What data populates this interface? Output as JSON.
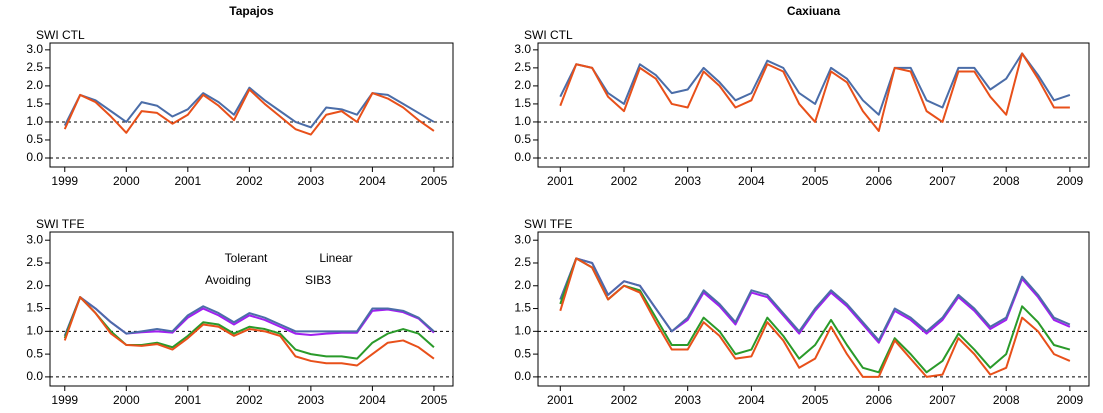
{
  "chart_data": [
    {
      "type": "line",
      "title": "Tapajos",
      "ylabel": "SWI CTL",
      "x": [
        1999,
        1999.25,
        1999.5,
        1999.75,
        2000,
        2000.25,
        2000.5,
        2000.75,
        2001,
        2001.25,
        2001.5,
        2001.75,
        2002,
        2002.25,
        2002.5,
        2002.75,
        2003,
        2003.25,
        2003.5,
        2003.75,
        2004,
        2004.25,
        2004.5,
        2004.75,
        2005
      ],
      "xlim": [
        1998.76,
        2005.31
      ],
      "xticks": [
        1999,
        2000,
        2001,
        2002,
        2003,
        2004,
        2005
      ],
      "ylim": [
        -0.25,
        3.19
      ],
      "yticks": [
        {
          "value": 0,
          "label": "0.0"
        },
        {
          "value": 0.5,
          "label": "0.5"
        },
        {
          "value": 1,
          "label": "1.0"
        },
        {
          "value": 1.5,
          "label": "1.5"
        },
        {
          "value": 2,
          "label": "2.0"
        },
        {
          "value": 2.5,
          "label": "2.5"
        },
        {
          "value": 3,
          "label": "3.0"
        }
      ],
      "hlines": [
        0,
        1
      ],
      "series": [
        {
          "color": "#4b6da8",
          "values": [
            0.9,
            1.75,
            1.6,
            1.3,
            1.0,
            1.55,
            1.45,
            1.15,
            1.35,
            1.8,
            1.55,
            1.2,
            1.95,
            1.6,
            1.3,
            1.0,
            0.85,
            1.4,
            1.35,
            1.2,
            1.8,
            1.75,
            1.5,
            1.25,
            1.0
          ]
        },
        {
          "color": "#e8501a",
          "values": [
            0.8,
            1.75,
            1.55,
            1.15,
            0.7,
            1.3,
            1.25,
            0.95,
            1.2,
            1.75,
            1.45,
            1.05,
            1.9,
            1.5,
            1.15,
            0.8,
            0.65,
            1.2,
            1.3,
            1.0,
            1.8,
            1.65,
            1.4,
            1.05,
            0.75
          ]
        }
      ]
    },
    {
      "type": "line",
      "title": "Caxiuana",
      "ylabel": "SWI CTL",
      "x": [
        2001,
        2001.25,
        2001.5,
        2001.75,
        2002,
        2002.25,
        2002.5,
        2002.75,
        2003,
        2003.25,
        2003.5,
        2003.75,
        2004,
        2004.25,
        2004.5,
        2004.75,
        2005,
        2005.25,
        2005.5,
        2005.75,
        2006,
        2006.25,
        2006.5,
        2006.75,
        2007,
        2007.25,
        2007.5,
        2007.75,
        2008,
        2008.25,
        2008.5,
        2008.75,
        2009
      ],
      "xlim": [
        2000.65,
        2009.3
      ],
      "xticks": [
        2001,
        2002,
        2003,
        2004,
        2005,
        2006,
        2007,
        2008,
        2009
      ],
      "ylim": [
        -0.25,
        3.19
      ],
      "yticks": [
        {
          "value": 0,
          "label": "0.0"
        },
        {
          "value": 0.5,
          "label": "0.5"
        },
        {
          "value": 1,
          "label": "1.0"
        },
        {
          "value": 1.5,
          "label": "1.5"
        },
        {
          "value": 2,
          "label": "2.0"
        },
        {
          "value": 2.5,
          "label": "2.5"
        },
        {
          "value": 3,
          "label": "3.0"
        }
      ],
      "hlines": [
        0,
        1
      ],
      "series": [
        {
          "color": "#4b6da8",
          "values": [
            1.7,
            2.6,
            2.5,
            1.8,
            1.5,
            2.6,
            2.3,
            1.8,
            1.9,
            2.5,
            2.1,
            1.6,
            1.8,
            2.7,
            2.5,
            1.8,
            1.5,
            2.5,
            2.2,
            1.6,
            1.2,
            2.5,
            2.5,
            1.6,
            1.4,
            2.5,
            2.5,
            1.9,
            2.2,
            2.9,
            2.3,
            1.6,
            1.75
          ]
        },
        {
          "color": "#e8501a",
          "values": [
            1.45,
            2.6,
            2.5,
            1.7,
            1.3,
            2.5,
            2.2,
            1.5,
            1.4,
            2.4,
            2.0,
            1.4,
            1.6,
            2.6,
            2.4,
            1.5,
            1.0,
            2.4,
            2.1,
            1.3,
            0.75,
            2.5,
            2.4,
            1.3,
            1.0,
            2.4,
            2.4,
            1.7,
            1.2,
            2.9,
            2.2,
            1.4,
            1.4
          ]
        }
      ]
    },
    {
      "type": "line",
      "ylabel": "SWI TFE",
      "legend": true,
      "x": [
        1999,
        1999.25,
        1999.5,
        1999.75,
        2000,
        2000.25,
        2000.5,
        2000.75,
        2001,
        2001.25,
        2001.5,
        2001.75,
        2002,
        2002.25,
        2002.5,
        2002.75,
        2003,
        2003.25,
        2003.5,
        2003.75,
        2004,
        2004.25,
        2004.5,
        2004.75,
        2005
      ],
      "xlim": [
        1998.76,
        2005.31
      ],
      "xticks": [
        1999,
        2000,
        2001,
        2002,
        2003,
        2004,
        2005
      ],
      "ylim": [
        -0.2,
        3.18
      ],
      "yticks": [
        {
          "value": 0,
          "label": "0.0"
        },
        {
          "value": 0.5,
          "label": "0.5"
        },
        {
          "value": 1,
          "label": "1.0"
        },
        {
          "value": 1.5,
          "label": "1.5"
        },
        {
          "value": 2,
          "label": "2.0"
        },
        {
          "value": 2.5,
          "label": "2.5"
        },
        {
          "value": 3,
          "label": "3.0"
        }
      ],
      "hlines": [
        0,
        1
      ],
      "series": [
        {
          "name": "Tolerant",
          "color": "#a020f0",
          "values": [
            0.9,
            1.75,
            1.5,
            1.2,
            0.95,
            0.98,
            1.0,
            0.97,
            1.3,
            1.5,
            1.35,
            1.15,
            1.35,
            1.25,
            1.1,
            0.95,
            0.92,
            0.95,
            0.97,
            0.97,
            1.45,
            1.48,
            1.42,
            1.28,
            0.97
          ]
        },
        {
          "name": "Avoiding",
          "color": "#4b6da8",
          "values": [
            0.9,
            1.75,
            1.5,
            1.2,
            0.95,
            1.0,
            1.05,
            1.0,
            1.35,
            1.55,
            1.4,
            1.2,
            1.4,
            1.3,
            1.15,
            1.0,
            1.0,
            1.0,
            1.0,
            1.0,
            1.5,
            1.5,
            1.45,
            1.3,
            1.0
          ]
        },
        {
          "name": "Linear",
          "color": "#2a9a2a",
          "values": [
            0.85,
            1.75,
            1.4,
            1.0,
            0.7,
            0.7,
            0.75,
            0.65,
            0.9,
            1.2,
            1.15,
            0.95,
            1.1,
            1.05,
            0.95,
            0.6,
            0.5,
            0.45,
            0.45,
            0.4,
            0.75,
            0.95,
            1.05,
            0.95,
            0.65
          ]
        },
        {
          "name": "SIB3",
          "color": "#e8501a",
          "values": [
            0.8,
            1.75,
            1.4,
            0.95,
            0.7,
            0.68,
            0.72,
            0.6,
            0.85,
            1.15,
            1.1,
            0.9,
            1.05,
            1.0,
            0.9,
            0.45,
            0.35,
            0.3,
            0.3,
            0.25,
            0.5,
            0.75,
            0.8,
            0.65,
            0.4
          ]
        }
      ]
    },
    {
      "type": "line",
      "ylabel": "SWI TFE",
      "x": [
        2001,
        2001.25,
        2001.5,
        2001.75,
        2002,
        2002.25,
        2002.5,
        2002.75,
        2003,
        2003.25,
        2003.5,
        2003.75,
        2004,
        2004.25,
        2004.5,
        2004.75,
        2005,
        2005.25,
        2005.5,
        2005.75,
        2006,
        2006.25,
        2006.5,
        2006.75,
        2007,
        2007.25,
        2007.5,
        2007.75,
        2008,
        2008.25,
        2008.5,
        2008.75,
        2009
      ],
      "xlim": [
        2000.65,
        2009.3
      ],
      "xticks": [
        2001,
        2002,
        2003,
        2004,
        2005,
        2006,
        2007,
        2008,
        2009
      ],
      "ylim": [
        -0.2,
        3.18
      ],
      "yticks": [
        {
          "value": 0,
          "label": "0.0"
        },
        {
          "value": 0.5,
          "label": "0.5"
        },
        {
          "value": 1,
          "label": "1.0"
        },
        {
          "value": 1.5,
          "label": "1.5"
        },
        {
          "value": 2,
          "label": "2.0"
        },
        {
          "value": 2.5,
          "label": "2.5"
        },
        {
          "value": 3,
          "label": "3.0"
        }
      ],
      "hlines": [
        0,
        1
      ],
      "series": [
        {
          "color": "#a020f0",
          "values": [
            1.7,
            2.6,
            2.5,
            1.8,
            2.1,
            2.0,
            1.5,
            1.0,
            1.25,
            1.85,
            1.55,
            1.15,
            1.85,
            1.75,
            1.35,
            0.95,
            1.45,
            1.85,
            1.55,
            1.15,
            0.75,
            1.45,
            1.25,
            0.95,
            1.25,
            1.75,
            1.45,
            1.05,
            1.25,
            2.15,
            1.75,
            1.25,
            1.1
          ]
        },
        {
          "color": "#4b6da8",
          "values": [
            1.7,
            2.6,
            2.5,
            1.8,
            2.1,
            2.0,
            1.5,
            1.0,
            1.3,
            1.9,
            1.6,
            1.2,
            1.9,
            1.8,
            1.4,
            1.0,
            1.5,
            1.9,
            1.6,
            1.2,
            0.8,
            1.5,
            1.3,
            1.0,
            1.3,
            1.8,
            1.5,
            1.1,
            1.3,
            2.2,
            1.8,
            1.3,
            1.15
          ]
        },
        {
          "color": "#2a9a2a",
          "values": [
            1.6,
            2.6,
            2.4,
            1.7,
            2.0,
            1.9,
            1.3,
            0.7,
            0.7,
            1.3,
            1.0,
            0.5,
            0.6,
            1.3,
            0.9,
            0.4,
            0.7,
            1.25,
            0.7,
            0.2,
            0.1,
            0.85,
            0.5,
            0.1,
            0.35,
            0.95,
            0.6,
            0.2,
            0.5,
            1.55,
            1.2,
            0.7,
            0.6
          ]
        },
        {
          "color": "#e8501a",
          "values": [
            1.45,
            2.6,
            2.4,
            1.7,
            2.0,
            1.85,
            1.2,
            0.6,
            0.6,
            1.2,
            0.9,
            0.4,
            0.45,
            1.2,
            0.8,
            0.2,
            0.4,
            1.1,
            0.5,
            0.0,
            0.0,
            0.8,
            0.4,
            0.0,
            0.05,
            0.85,
            0.5,
            0.05,
            0.2,
            1.3,
            1.0,
            0.5,
            0.35
          ]
        }
      ]
    }
  ]
}
